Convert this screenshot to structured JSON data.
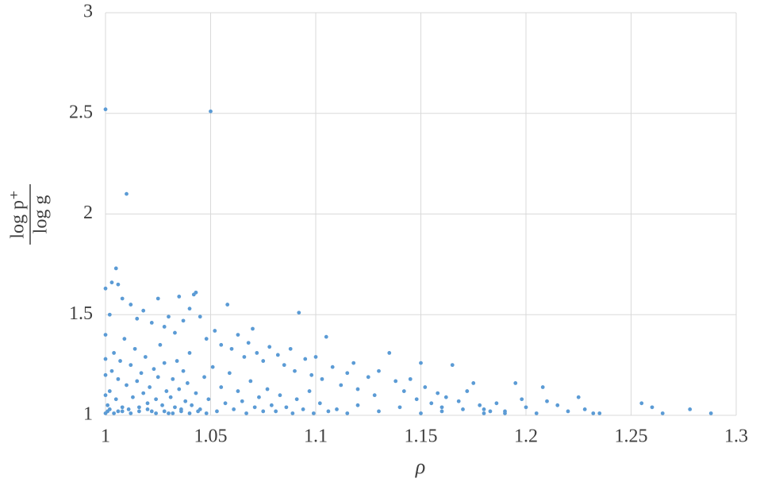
{
  "chart_data": {
    "type": "scatter",
    "xlabel": "ρ",
    "ylabel_numerator": "log p⁺",
    "ylabel_denominator": "log g",
    "color": "#5b9bd5",
    "grid": true,
    "xlim": [
      1,
      1.3
    ],
    "xticks": [
      1,
      1.05,
      1.1,
      1.15,
      1.2,
      1.25,
      1.3
    ],
    "ylim": [
      1,
      3
    ],
    "yticks": [
      1,
      1.5,
      2,
      2.5,
      3
    ],
    "x": [
      1.0,
      1.05,
      1.01,
      1.005,
      1.0,
      1.003,
      1.006,
      1.042,
      1.043,
      1.035,
      1.058,
      1.092,
      1.165,
      1.225,
      1.208,
      1.255,
      1.26,
      1.278,
      1.288,
      1.265,
      1.235,
      1.195,
      1.175,
      1.15,
      1.135,
      1.105,
      1.07,
      1.002,
      1.008,
      1.012,
      1.015,
      1.018,
      1.022,
      1.025,
      1.028,
      1.03,
      1.033,
      1.037,
      1.04,
      1.045,
      1.048,
      1.052,
      1.055,
      1.06,
      1.063,
      1.066,
      1.068,
      1.072,
      1.075,
      1.078,
      1.082,
      1.085,
      1.088,
      1.09,
      1.095,
      1.098,
      1.1,
      1.103,
      1.108,
      1.112,
      1.115,
      1.118,
      1.12,
      1.125,
      1.128,
      1.13,
      1.138,
      1.142,
      1.145,
      1.148,
      1.152,
      1.155,
      1.158,
      1.16,
      1.162,
      1.168,
      1.172,
      1.178,
      1.18,
      1.183,
      1.186,
      1.19,
      1.198,
      1.2,
      1.205,
      1.21,
      1.215,
      1.22,
      1.228,
      1.232,
      1.001,
      1.002,
      1.003,
      1.004,
      1.005,
      1.006,
      1.007,
      1.008,
      1.009,
      1.01,
      1.011,
      1.012,
      1.013,
      1.014,
      1.015,
      1.016,
      1.017,
      1.018,
      1.019,
      1.02,
      1.021,
      1.022,
      1.023,
      1.024,
      1.025,
      1.026,
      1.027,
      1.028,
      1.029,
      1.03,
      1.031,
      1.032,
      1.033,
      1.034,
      1.035,
      1.036,
      1.037,
      1.038,
      1.039,
      1.04,
      1.041,
      1.043,
      1.045,
      1.047,
      1.049,
      1.051,
      1.053,
      1.055,
      1.057,
      1.059,
      1.061,
      1.063,
      1.065,
      1.067,
      1.069,
      1.071,
      1.073,
      1.075,
      1.077,
      1.079,
      1.081,
      1.083,
      1.086,
      1.089,
      1.091,
      1.094,
      1.097,
      1.099,
      1.102,
      1.106,
      1.0,
      1.0,
      1.0,
      1.0,
      1.0,
      1.001,
      1.002,
      1.004,
      1.006,
      1.008,
      1.012,
      1.016,
      1.02,
      1.024,
      1.028,
      1.032,
      1.036,
      1.04,
      1.044,
      1.048,
      1.11,
      1.115,
      1.12,
      1.13,
      1.14,
      1.15,
      1.16,
      1.17,
      1.18,
      1.19
    ],
    "values": [
      2.52,
      2.51,
      2.1,
      1.73,
      1.63,
      1.66,
      1.65,
      1.6,
      1.61,
      1.59,
      1.55,
      1.51,
      1.25,
      1.09,
      1.14,
      1.06,
      1.04,
      1.03,
      1.01,
      1.01,
      1.01,
      1.16,
      1.16,
      1.26,
      1.31,
      1.39,
      1.43,
      1.5,
      1.58,
      1.55,
      1.48,
      1.52,
      1.46,
      1.58,
      1.44,
      1.49,
      1.41,
      1.47,
      1.53,
      1.49,
      1.38,
      1.42,
      1.35,
      1.33,
      1.4,
      1.29,
      1.36,
      1.31,
      1.27,
      1.34,
      1.3,
      1.25,
      1.33,
      1.22,
      1.28,
      1.2,
      1.29,
      1.18,
      1.24,
      1.15,
      1.21,
      1.26,
      1.13,
      1.19,
      1.1,
      1.22,
      1.17,
      1.12,
      1.18,
      1.08,
      1.14,
      1.06,
      1.11,
      1.04,
      1.09,
      1.07,
      1.12,
      1.05,
      1.03,
      1.02,
      1.06,
      1.02,
      1.08,
      1.04,
      1.01,
      1.07,
      1.05,
      1.02,
      1.03,
      1.01,
      1.05,
      1.12,
      1.22,
      1.31,
      1.08,
      1.18,
      1.27,
      1.02,
      1.38,
      1.15,
      1.03,
      1.25,
      1.09,
      1.33,
      1.17,
      1.04,
      1.21,
      1.11,
      1.29,
      1.06,
      1.14,
      1.02,
      1.23,
      1.08,
      1.19,
      1.35,
      1.05,
      1.26,
      1.12,
      1.01,
      1.09,
      1.18,
      1.04,
      1.27,
      1.13,
      1.02,
      1.22,
      1.07,
      1.16,
      1.31,
      1.05,
      1.11,
      1.03,
      1.19,
      1.08,
      1.24,
      1.02,
      1.14,
      1.06,
      1.21,
      1.03,
      1.12,
      1.07,
      1.01,
      1.17,
      1.04,
      1.09,
      1.02,
      1.13,
      1.05,
      1.02,
      1.1,
      1.04,
      1.01,
      1.08,
      1.03,
      1.12,
      1.01,
      1.06,
      1.02,
      1.01,
      1.1,
      1.2,
      1.28,
      1.4,
      1.02,
      1.03,
      1.01,
      1.02,
      1.04,
      1.01,
      1.02,
      1.03,
      1.01,
      1.02,
      1.01,
      1.03,
      1.01,
      1.02,
      1.01,
      1.03,
      1.01,
      1.05,
      1.02,
      1.04,
      1.01,
      1.02,
      1.03,
      1.01,
      1.01
    ]
  }
}
